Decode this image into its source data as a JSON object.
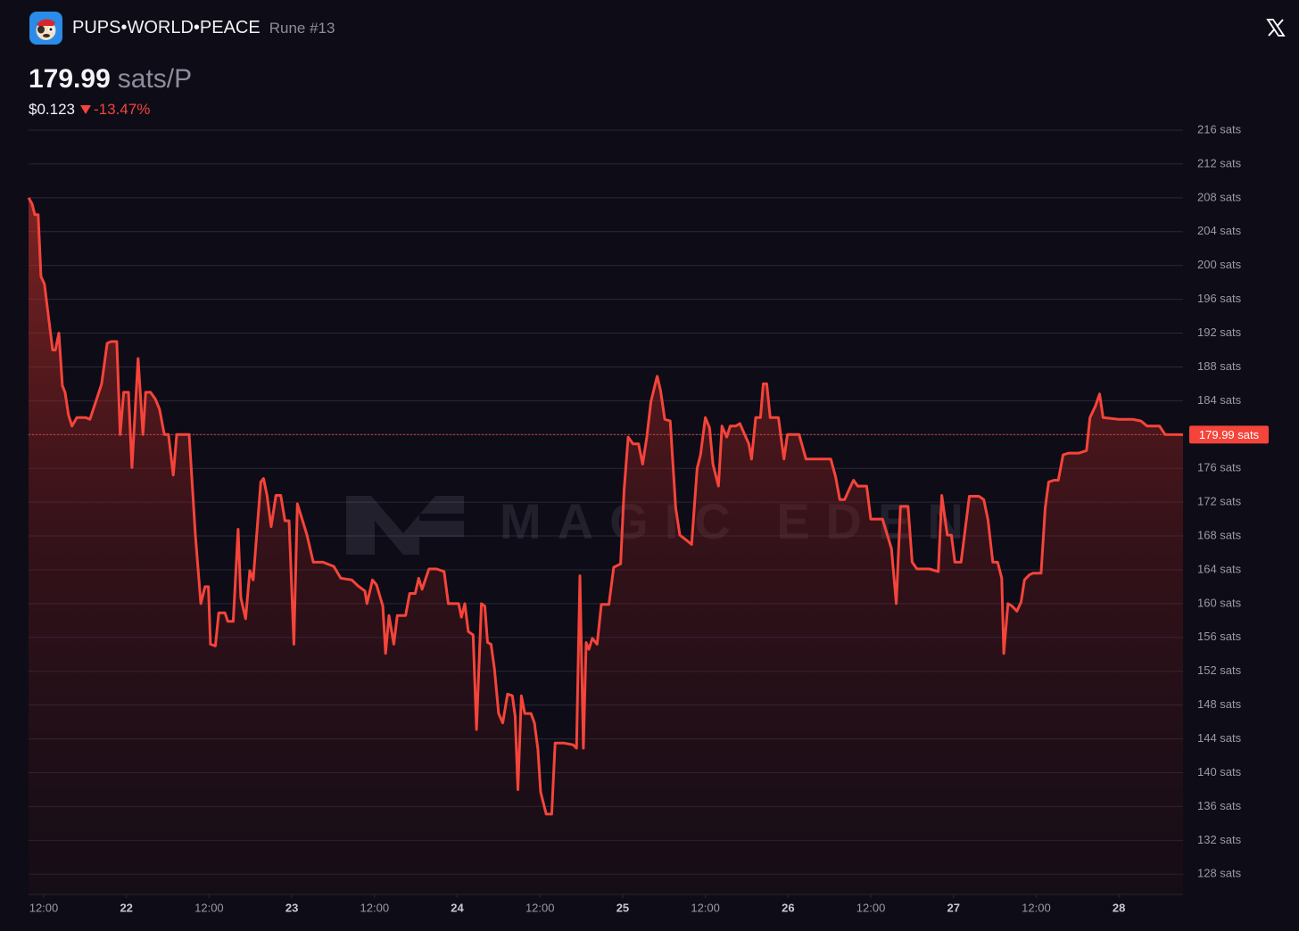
{
  "header": {
    "name": "PUPS•WORLD•PEACE",
    "rune": "Rune #13",
    "price": "179.99",
    "price_unit": "sats/P",
    "usd": "$0.123",
    "change": "-13.47%"
  },
  "chart_data": {
    "type": "line",
    "watermark": "MAGIC EDEN",
    "x": [
      9.8,
      10.3,
      10.7,
      11.2,
      11.6,
      12.1,
      13.3,
      13.7,
      14.2,
      14.7,
      15.1,
      15.6,
      16.1,
      16.8,
      18.1,
      18.7,
      19.8,
      20.4,
      21.2,
      21.8,
      22.6,
      23.1,
      23.6,
      24.3,
      24.8,
      25.7,
      26.4,
      26.8,
      27.5,
      28.2,
      28.8,
      29.5,
      30.1,
      30.8,
      31.3,
      33.1,
      34.0,
      34.8,
      35.4,
      35.9,
      36.2,
      36.9,
      37.4,
      38.3,
      38.7,
      39.5,
      40.2,
      40.6,
      41.3,
      41.9,
      42.4,
      43.5,
      43.9,
      44.4,
      45.0,
      45.7,
      46.4,
      47.0,
      47.6,
      48.3,
      48.8,
      49.6,
      50.2,
      51.1,
      52.5,
      54.1,
      55.1,
      56.7,
      57.6,
      58.6,
      58.9,
      59.7,
      60.3,
      61.2,
      61.6,
      62.1,
      62.8,
      63.3,
      64.5,
      65.1,
      65.9,
      66.4,
      66.9,
      67.9,
      69.0,
      70.1,
      70.7,
      72.2,
      72.6,
      73.1,
      73.6,
      74.3,
      74.8,
      75.5,
      76.0,
      76.4,
      76.9,
      77.4,
      78.0,
      78.6,
      79.3,
      80.0,
      80.4,
      80.8,
      81.3,
      81.8,
      82.7,
      83.2,
      83.7,
      84.1,
      84.9,
      85.7,
      86.2,
      87.5,
      88.8,
      89.3,
      89.8,
      90.3,
      90.7,
      91.1,
      91.6,
      92.3,
      92.9,
      94.0,
      94.7,
      95.7,
      96.2,
      96.8,
      97.5,
      98.3,
      98.9,
      99.5,
      100.1,
      101.0,
      101.5,
      102.1,
      102.9,
      103.7,
      104.3,
      105.1,
      106.0,
      106.8,
      107.3,
      108.0,
      108.6,
      109.1,
      109.9,
      110.4,
      111.1,
      111.6,
      112.4,
      113.0,
      113.7,
      114.3,
      114.7,
      115.3,
      116.0,
      116.4,
      116.9,
      117.4,
      118.6,
      119.4,
      119.9,
      121.6,
      122.6,
      126.2,
      126.9,
      127.5,
      128.2,
      128.8,
      129.5,
      130.1,
      131.4,
      132.0,
      133.7,
      135.0,
      135.7,
      136.3,
      137.4,
      138.0,
      138.7,
      140.5,
      141.8,
      142.3,
      143.1,
      143.7,
      144.2,
      145.1,
      146.3,
      147.7,
      148.4,
      149.0,
      149.7,
      150.4,
      151.0,
      151.3,
      151.9,
      152.5,
      153.2,
      153.8,
      154.3,
      155.0,
      155.5,
      156.7,
      157.3,
      157.8,
      158.6,
      159.2,
      159.9,
      160.7,
      162.2,
      163.3,
      163.8,
      164.6,
      165.2,
      165.7,
      168.0,
      170.0,
      171.2,
      172.1,
      173.9,
      174.7,
      177.3
    ],
    "series": [
      {
        "color": "#f5443a",
        "values": [
          208,
          207.3,
          206,
          206,
          198.7,
          197.8,
          190,
          190,
          192,
          185.8,
          185,
          182.3,
          181,
          182,
          182,
          181.8,
          184.5,
          186,
          190.8,
          191,
          191,
          180,
          185,
          185,
          176.1,
          189,
          180,
          185,
          185,
          184.2,
          183,
          180,
          180,
          175.2,
          180,
          180,
          168.1,
          160,
          162,
          162,
          155.2,
          155,
          158.9,
          158.9,
          157.9,
          157.9,
          168.8,
          160.7,
          158.2,
          163.9,
          162.8,
          174.4,
          174.8,
          172.8,
          169.1,
          172.8,
          172.8,
          169.8,
          169.8,
          155.2,
          171.8,
          169.7,
          168.1,
          164.9,
          164.9,
          164.4,
          163,
          162.8,
          162.1,
          161.5,
          160,
          162.8,
          162.2,
          159.7,
          154.1,
          158.6,
          155.2,
          158.6,
          158.6,
          161.2,
          161.2,
          163,
          161.7,
          164.1,
          164.1,
          163.8,
          160,
          160,
          158.4,
          160,
          156.7,
          156.3,
          145.1,
          160,
          159.7,
          155.4,
          155.2,
          152.3,
          147,
          145.9,
          149.3,
          149.1,
          146.7,
          138,
          149.1,
          147,
          147,
          145.9,
          142.8,
          137.7,
          135.1,
          135.1,
          143.5,
          143.5,
          143.3,
          142.9,
          163.3,
          142.9,
          155.4,
          154.6,
          155.9,
          155.2,
          159.9,
          159.9,
          164.3,
          164.7,
          173.4,
          179.7,
          178.9,
          178.9,
          176.5,
          179.7,
          183.9,
          186.9,
          185.2,
          181.8,
          181.6,
          171.3,
          168.1,
          167.6,
          167,
          176,
          177.6,
          182,
          180.8,
          176.5,
          173.9,
          181,
          179.7,
          181,
          181,
          181.3,
          180,
          178.9,
          177.1,
          182,
          182,
          186,
          186,
          182,
          182,
          177.1,
          180,
          180,
          177.1,
          177.1,
          175,
          172.3,
          172.3,
          173.4,
          174.6,
          173.9,
          173.9,
          170,
          170,
          166.5,
          160,
          171.5,
          171.5,
          164.9,
          164.1,
          164.1,
          163.8,
          172.8,
          168.1,
          168.1,
          164.9,
          164.9,
          172.7,
          172.7,
          172.3,
          169.9,
          164.9,
          164.9,
          163,
          154.1,
          160,
          159.7,
          159.1,
          160.2,
          162.8,
          163.4,
          163.6,
          163.6,
          171.3,
          174.4,
          174.6,
          174.6,
          177.6,
          177.8,
          177.8,
          178.1,
          182,
          183.4,
          184.8,
          182,
          181.8,
          181.8,
          181.6,
          181,
          181,
          180,
          179.99
        ]
      }
    ],
    "last_price": {
      "value": 179.99,
      "label": "179.99 sats"
    },
    "xlim": [
      9.8,
      177.3
    ],
    "ylim": [
      125.6,
      216
    ],
    "xticks": [
      {
        "value": 12,
        "label": "12:00"
      },
      {
        "value": 24,
        "label": "22"
      },
      {
        "value": 36,
        "label": "12:00"
      },
      {
        "value": 48,
        "label": "23"
      },
      {
        "value": 60,
        "label": "12:00"
      },
      {
        "value": 72,
        "label": "24"
      },
      {
        "value": 84,
        "label": "12:00"
      },
      {
        "value": 96,
        "label": "25"
      },
      {
        "value": 108,
        "label": "12:00"
      },
      {
        "value": 120,
        "label": "26"
      },
      {
        "value": 132,
        "label": "12:00"
      },
      {
        "value": 144,
        "label": "27"
      },
      {
        "value": 156,
        "label": "12:00"
      },
      {
        "value": 168,
        "label": "28"
      }
    ],
    "yticks": [
      {
        "value": 128,
        "label": "128 sats"
      },
      {
        "value": 132,
        "label": "132 sats"
      },
      {
        "value": 136,
        "label": "136 sats"
      },
      {
        "value": 140,
        "label": "140 sats"
      },
      {
        "value": 144,
        "label": "144 sats"
      },
      {
        "value": 148,
        "label": "148 sats"
      },
      {
        "value": 152,
        "label": "152 sats"
      },
      {
        "value": 156,
        "label": "156 sats"
      },
      {
        "value": 160,
        "label": "160 sats"
      },
      {
        "value": 164,
        "label": "164 sats"
      },
      {
        "value": 168,
        "label": "168 sats"
      },
      {
        "value": 172,
        "label": "172 sats"
      },
      {
        "value": 176,
        "label": "176 sats"
      },
      {
        "value": 180,
        "label": "180 sats"
      },
      {
        "value": 184,
        "label": "184 sats"
      },
      {
        "value": 188,
        "label": "188 sats"
      },
      {
        "value": 192,
        "label": "192 sats"
      },
      {
        "value": 196,
        "label": "196 sats"
      },
      {
        "value": 200,
        "label": "200 sats"
      },
      {
        "value": 204,
        "label": "204 sats"
      },
      {
        "value": 208,
        "label": "208 sats"
      },
      {
        "value": 212,
        "label": "212 sats"
      },
      {
        "value": 216,
        "label": "216 sats"
      }
    ],
    "grid": true
  }
}
